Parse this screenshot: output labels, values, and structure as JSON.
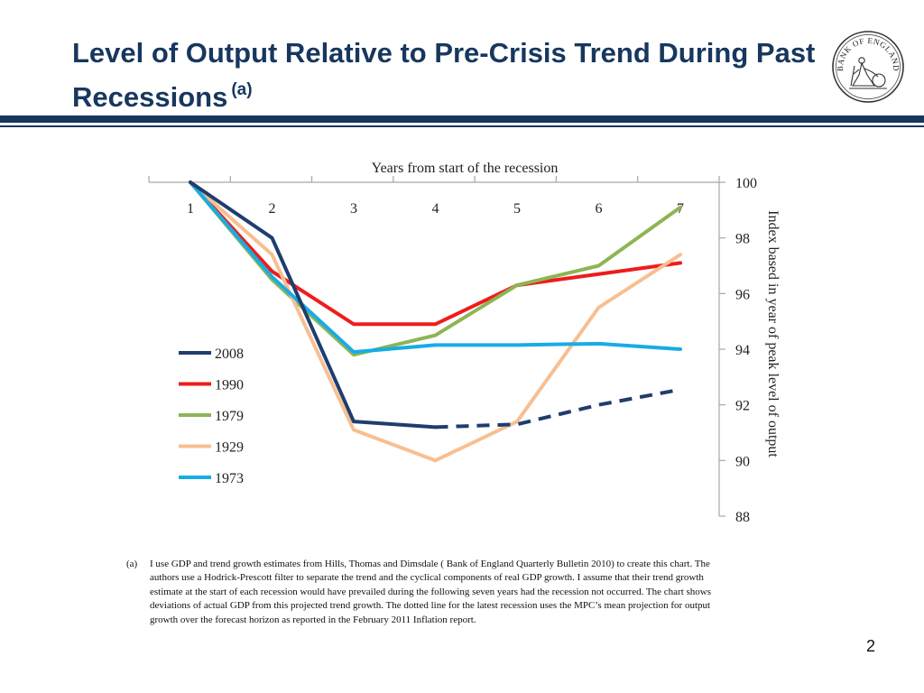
{
  "slide": {
    "title": "Level of Output Relative to Pre-Crisis Trend During Past Recessions",
    "title_superscript": "(a)",
    "page_number": "2",
    "logo_text": "BANK OF ENGLAND"
  },
  "colors": {
    "title": "#17375e",
    "rule": "#17375e",
    "axis": "#a6a6a6"
  },
  "chart_data": {
    "type": "line",
    "xlabel": "Years from start of the recession",
    "ylabel": "Index based in year of peak level of output",
    "x_axis_position": "top",
    "y_axis_position": "right",
    "categories": [
      "1",
      "2",
      "3",
      "4",
      "5",
      "6",
      "7"
    ],
    "x": [
      1,
      2,
      3,
      4,
      5,
      6,
      7
    ],
    "ylim": [
      88,
      100
    ],
    "yticks": [
      88,
      90,
      92,
      94,
      96,
      98,
      100
    ],
    "legend_position": "left-middle",
    "series": [
      {
        "name": "2008",
        "color": "#1f3d6e",
        "values": [
          100,
          98.0,
          91.4,
          91.2,
          null,
          null,
          null
        ],
        "projection": [
          null,
          null,
          null,
          91.2,
          91.3,
          92.0,
          92.55
        ]
      },
      {
        "name": "1990",
        "color": "#ee1c1c",
        "values": [
          100,
          96.8,
          94.9,
          94.9,
          96.3,
          96.7,
          97.1
        ]
      },
      {
        "name": "1979",
        "color": "#8db554",
        "values": [
          100,
          96.5,
          93.8,
          94.5,
          96.3,
          97.0,
          99.1
        ]
      },
      {
        "name": "1929",
        "color": "#f7bf92",
        "values": [
          100,
          97.4,
          91.1,
          90.0,
          91.4,
          95.5,
          97.4
        ]
      },
      {
        "name": "1973",
        "color": "#18ace4",
        "values": [
          100,
          96.6,
          93.9,
          94.15,
          94.15,
          94.2,
          94.0
        ]
      }
    ]
  },
  "footnote": {
    "marker": "(a)",
    "text": "I use GDP and trend growth estimates from Hills, Thomas and Dimsdale ( Bank of England Quarterly Bulletin 2010) to create this chart. The authors use a Hodrick-Prescott filter to separate the trend and the cyclical components of real GDP growth. I assume that their trend growth estimate at the start of each recession would have prevailed during the following seven years had the recession not occurred. The chart shows deviations of actual GDP from this projected trend growth. The dotted line for the latest recession uses the MPC’s mean projection for output growth over the forecast horizon as reported in the February 2011 Inflation report."
  }
}
